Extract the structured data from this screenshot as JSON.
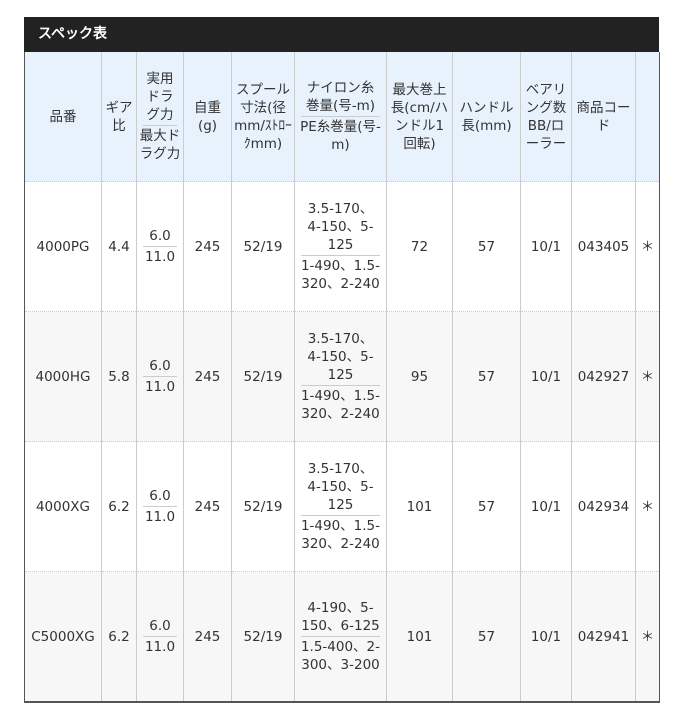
{
  "title": "スペック表",
  "headers": {
    "model": "品番",
    "gear": "ギア比",
    "drag_top": "実用ドラグ力",
    "drag_bottom": "最大ドラグ力",
    "weight": "自重(g)",
    "spool": "スプール寸法(径mm/ｽﾄﾛｰｸmm)",
    "line_top": "ナイロン糸巻量(号-m)",
    "line_bottom": "PE糸巻量(号-m)",
    "retrieve": "最大巻上長(cm/ハンドル1回転)",
    "handle": "ハンドル長(mm)",
    "bearing": "ベアリング数BB/ローラー",
    "code": "商品コード"
  },
  "rows": [
    {
      "model": "4000PG",
      "gear": "4.4",
      "drag_practical": "6.0",
      "drag_max": "11.0",
      "weight": "245",
      "spool": "52/19",
      "nylon": "3.5-170、4-150、5-125",
      "pe": "1-490、1.5-320、2-240",
      "retrieve": "72",
      "handle": "57",
      "bearing": "10/1",
      "code": "043405",
      "mark": "＊"
    },
    {
      "model": "4000HG",
      "gear": "5.8",
      "drag_practical": "6.0",
      "drag_max": "11.0",
      "weight": "245",
      "spool": "52/19",
      "nylon": "3.5-170、4-150、5-125",
      "pe": "1-490、1.5-320、2-240",
      "retrieve": "95",
      "handle": "57",
      "bearing": "10/1",
      "code": "042927",
      "mark": "＊"
    },
    {
      "model": "4000XG",
      "gear": "6.2",
      "drag_practical": "6.0",
      "drag_max": "11.0",
      "weight": "245",
      "spool": "52/19",
      "nylon": "3.5-170、4-150、5-125",
      "pe": "1-490、1.5-320、2-240",
      "retrieve": "101",
      "handle": "57",
      "bearing": "10/1",
      "code": "042934",
      "mark": "＊"
    },
    {
      "model": "C5000XG",
      "gear": "6.2",
      "drag_practical": "6.0",
      "drag_max": "11.0",
      "weight": "245",
      "spool": "52/19",
      "nylon": "4-190、5-150、6-125",
      "pe": "1.5-400、2-300、3-200",
      "retrieve": "101",
      "handle": "57",
      "bearing": "10/1",
      "code": "042941",
      "mark": "＊"
    }
  ]
}
